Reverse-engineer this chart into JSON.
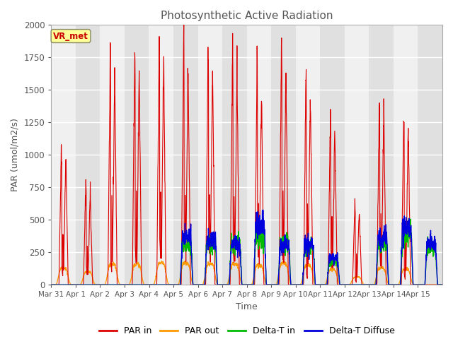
{
  "title": "Photosynthetic Active Radiation",
  "xlabel": "Time",
  "ylabel": "PAR (umol/m2/s)",
  "ylim": [
    0,
    2000
  ],
  "annotation": "VR_met",
  "annotation_color": "#cc0000",
  "annotation_bg": "#ffff99",
  "legend": [
    "PAR in",
    "PAR out",
    "Delta-T in",
    "Delta-T Diffuse"
  ],
  "colors": {
    "PAR_in": "#dd0000",
    "PAR_out": "#ff9900",
    "DeltaT_in": "#00bb00",
    "DeltaT_diffuse": "#0000dd"
  },
  "x_tick_labels": [
    "Mar 31",
    "Apr 1",
    "Apr 2",
    "Apr 3",
    "Apr 4",
    "Apr 5",
    "Apr 6",
    "Apr 7",
    "Apr 8",
    "Apr 9",
    "Apr 10",
    "Apr 11",
    "Apr 12",
    "Apr 13",
    "Apr 14",
    "Apr 15"
  ],
  "n_days": 16,
  "ppd": 144,
  "background_light": "#f0f0f0",
  "background_dark": "#e0e0e0",
  "grid_color": "#ffffff",
  "PAR_in_peaks": [
    1100,
    800,
    1850,
    1820,
    1950,
    1950,
    1830,
    1830,
    1700,
    1860,
    1680,
    1350,
    640,
    1480,
    1350,
    0
  ],
  "PAR_out_peaks": [
    130,
    100,
    160,
    160,
    170,
    170,
    160,
    160,
    150,
    165,
    150,
    120,
    60,
    130,
    120,
    0
  ],
  "DeltaT_in_vals": [
    0,
    0,
    0,
    0,
    0,
    310,
    310,
    320,
    360,
    320,
    285,
    180,
    0,
    310,
    380,
    290
  ],
  "DeltaT_diff_vals": [
    0,
    0,
    0,
    0,
    0,
    365,
    350,
    310,
    460,
    310,
    310,
    200,
    0,
    360,
    430,
    310
  ],
  "fig_width": 6.4,
  "fig_height": 4.8,
  "dpi": 100
}
